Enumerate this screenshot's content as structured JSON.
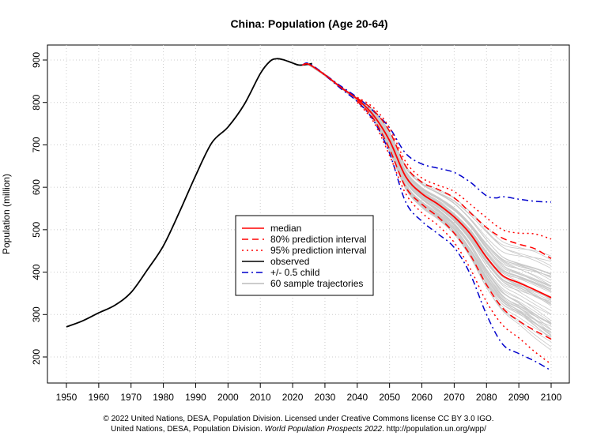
{
  "chart_data": {
    "type": "line",
    "title": "China: Population (Age 20-64)",
    "xlabel": "",
    "ylabel": "Population (million)",
    "xlim": [
      1950,
      2100
    ],
    "ylim": [
      200,
      900
    ],
    "x_ticks": [
      1950,
      1960,
      1970,
      1980,
      1990,
      2000,
      2010,
      2020,
      2030,
      2040,
      2050,
      2060,
      2070,
      2080,
      2090,
      2100
    ],
    "y_ticks": [
      200,
      300,
      400,
      500,
      600,
      700,
      800,
      900
    ],
    "grid": true,
    "legend_position": "center",
    "legend": [
      {
        "label": "median",
        "color": "#ff0000",
        "style": "solid"
      },
      {
        "label": "80% prediction interval",
        "color": "#ff0000",
        "style": "dashed"
      },
      {
        "label": "95% prediction interval",
        "color": "#ff0000",
        "style": "dotted"
      },
      {
        "label": "observed",
        "color": "#000000",
        "style": "solid"
      },
      {
        "label": "+/- 0.5 child",
        "color": "#0000cc",
        "style": "dashdot"
      },
      {
        "label": "60 sample trajectories",
        "color": "#bbbbbb",
        "style": "solid"
      }
    ],
    "series": [
      {
        "name": "observed",
        "x": [
          1950,
          1955,
          1960,
          1965,
          1970,
          1975,
          1980,
          1985,
          1990,
          1995,
          2000,
          2005,
          2010,
          2013,
          2015,
          2017,
          2020,
          2022,
          2025,
          2026
        ],
        "values": [
          271,
          285,
          304,
          322,
          352,
          405,
          462,
          542,
          628,
          705,
          742,
          795,
          868,
          897,
          903,
          901,
          893,
          888,
          890,
          892
        ]
      },
      {
        "name": "median",
        "x": [
          2023,
          2025,
          2030,
          2035,
          2040,
          2045,
          2050,
          2055,
          2060,
          2065,
          2070,
          2075,
          2080,
          2085,
          2090,
          2095,
          2100
        ],
        "values": [
          888,
          890,
          865,
          835,
          808,
          770,
          710,
          625,
          585,
          560,
          530,
          490,
          435,
          392,
          375,
          358,
          340
        ]
      },
      {
        "name": "80% prediction interval",
        "x": [
          2040,
          2045,
          2050,
          2055,
          2060,
          2065,
          2070,
          2075,
          2080,
          2085,
          2090,
          2095,
          2100
        ],
        "values": [
          810,
          782,
          732,
          650,
          612,
          595,
          575,
          540,
          505,
          480,
          466,
          455,
          432
        ]
      },
      {
        "name": "80% prediction interval",
        "x": [
          2040,
          2045,
          2050,
          2055,
          2060,
          2065,
          2070,
          2075,
          2080,
          2085,
          2090,
          2095,
          2100
        ],
        "values": [
          804,
          762,
          690,
          600,
          560,
          530,
          492,
          440,
          370,
          315,
          285,
          262,
          242
        ]
      },
      {
        "name": "95% prediction interval",
        "x": [
          2040,
          2045,
          2050,
          2055,
          2060,
          2065,
          2070,
          2075,
          2080,
          2085,
          2090,
          2095,
          2100
        ],
        "values": [
          812,
          788,
          740,
          660,
          622,
          605,
          590,
          560,
          528,
          500,
          492,
          490,
          478
        ]
      },
      {
        "name": "95% prediction interval",
        "x": [
          2040,
          2045,
          2050,
          2055,
          2060,
          2065,
          2070,
          2075,
          2080,
          2085,
          2090,
          2095,
          2100
        ],
        "values": [
          800,
          755,
          675,
          585,
          540,
          510,
          470,
          408,
          330,
          275,
          245,
          212,
          183
        ]
      },
      {
        "name": "+/- 0.5 child",
        "x": [
          2023,
          2025,
          2030,
          2035,
          2040,
          2045,
          2050,
          2055,
          2060,
          2065,
          2070,
          2075,
          2080,
          2083,
          2085,
          2090,
          2095,
          2100
        ],
        "values": [
          888,
          892,
          866,
          838,
          812,
          780,
          740,
          680,
          655,
          645,
          635,
          612,
          580,
          575,
          578,
          572,
          567,
          565
        ]
      },
      {
        "name": "+/- 0.5 child",
        "x": [
          2023,
          2025,
          2030,
          2035,
          2040,
          2045,
          2050,
          2055,
          2060,
          2065,
          2070,
          2075,
          2080,
          2085,
          2090,
          2095,
          2100
        ],
        "values": [
          888,
          890,
          864,
          832,
          802,
          758,
          680,
          565,
          520,
          490,
          458,
          395,
          300,
          230,
          208,
          190,
          168
        ]
      }
    ]
  },
  "footer": {
    "line1": "© 2022 United Nations, DESA, Population Division. Licensed under Creative Commons license CC BY 3.0 IGO.",
    "line2_pre": "United Nations, DESA, Population Division. ",
    "line2_italic": "World Population Prospects 2022",
    "line2_post": ". http://population.un.org/wpp/"
  }
}
